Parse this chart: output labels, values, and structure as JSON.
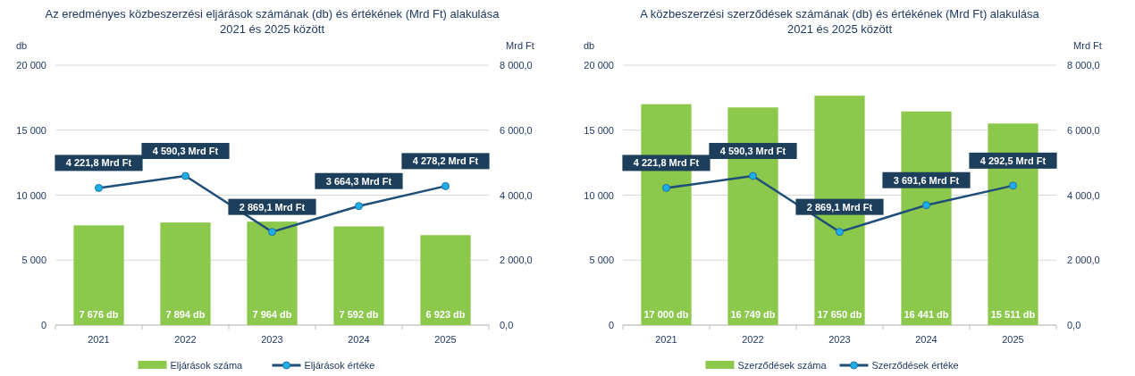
{
  "chart_data": [
    {
      "type": "bar",
      "title": "Az eredményes közbeszerzési eljárások számának (db) és értékének (Mrd Ft) alakulása",
      "subtitle": "2021 és 2025 között",
      "ylabel": "db",
      "y2label": "Mrd Ft",
      "categories": [
        "2021",
        "2022",
        "2023",
        "2024",
        "2025"
      ],
      "series": [
        {
          "name": "Eljárások száma",
          "color": "#8cc84b",
          "values": [
            7676,
            7894,
            7964,
            7592,
            6923
          ],
          "value_labels": [
            "7 676 db",
            "7 894 db",
            "7 964 db",
            "7 592 db",
            "6 923 db"
          ]
        },
        {
          "name": "Eljárások értéke",
          "type": "line",
          "axis": "y2",
          "color": "#1f4e79",
          "values": [
            4221.8,
            4590.3,
            2869.1,
            3664.3,
            4278.2
          ],
          "value_labels": [
            "4 221,8 Mrd Ft",
            "4 590,3 Mrd Ft",
            "2 869,1 Mrd Ft",
            "3 664,3 Mrd Ft",
            "4 278,2 Mrd Ft"
          ]
        }
      ],
      "ylim": [
        0,
        20000
      ],
      "yticks": [
        0,
        {
          "value": 5000,
          "label": "5 000"
        },
        {
          "value": 10000,
          "label": "10 000"
        },
        {
          "value": 15000,
          "label": "15 000"
        },
        {
          "value": 20000,
          "label": "20 000"
        }
      ],
      "y2lim": [
        0,
        8000
      ],
      "y2ticks": [
        {
          "value": 0,
          "label": "0,0"
        },
        {
          "value": 2000,
          "label": "2 000,0"
        },
        {
          "value": 4000,
          "label": "4 000,0"
        },
        {
          "value": 6000,
          "label": "6 000,0"
        },
        {
          "value": 8000,
          "label": "8 000,0"
        }
      ],
      "grid": "y",
      "legend": "bottom",
      "marker": "circle",
      "line_style": "solid"
    },
    {
      "type": "bar",
      "title": "A közbeszerzési szerződések számának (db) és értékének (Mrd Ft) alakulása",
      "subtitle": "2021 és 2025 között",
      "ylabel": "db",
      "y2label": "Mrd Ft",
      "categories": [
        "2021",
        "2022",
        "2023",
        "2024",
        "2025"
      ],
      "series": [
        {
          "name": "Szerződések száma",
          "color": "#8cc84b",
          "values": [
            17000,
            16749,
            17650,
            16441,
            15511
          ],
          "value_labels": [
            "17 000 db",
            "16 749 db",
            "17 650 db",
            "16 441 db",
            "15 511 db"
          ]
        },
        {
          "name": "Szerződések értéke",
          "type": "line",
          "axis": "y2",
          "color": "#1f4e79",
          "values": [
            4221.8,
            4590.3,
            2869.1,
            3691.6,
            4292.5
          ],
          "value_labels": [
            "4 221,8 Mrd Ft",
            "4 590,3 Mrd Ft",
            "2 869,1 Mrd Ft",
            "3 691,6 Mrd Ft",
            "4 292,5 Mrd Ft"
          ]
        }
      ],
      "ylim": [
        0,
        20000
      ],
      "yticks": [
        0,
        {
          "value": 5000,
          "label": "5 000"
        },
        {
          "value": 10000,
          "label": "10 000"
        },
        {
          "value": 15000,
          "label": "15 000"
        },
        {
          "value": 20000,
          "label": "20 000"
        }
      ],
      "y2lim": [
        0,
        8000
      ],
      "y2ticks": [
        {
          "value": 0,
          "label": "0,0"
        },
        {
          "value": 2000,
          "label": "2 000,0"
        },
        {
          "value": 4000,
          "label": "4 000,0"
        },
        {
          "value": 6000,
          "label": "6 000,0"
        },
        {
          "value": 8000,
          "label": "8 000,0"
        }
      ],
      "grid": "y",
      "legend": "bottom",
      "marker": "circle",
      "line_style": "solid"
    }
  ]
}
